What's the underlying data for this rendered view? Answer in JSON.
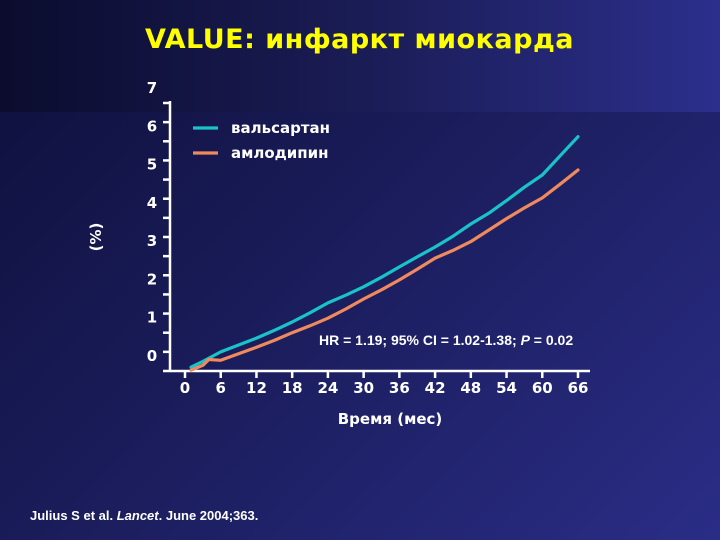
{
  "title": "VALUE: инфаркт миокарда",
  "citation": {
    "prefix": "Julius S et al. ",
    "journal": "Lancet",
    "suffix": ". June 2004;363."
  },
  "colors": {
    "title": "#ffff00",
    "valsartan": "#19c3c8",
    "amlodipine": "#f08a5d",
    "axis": "#ffffff"
  },
  "chart_data": {
    "type": "line",
    "title": "VALUE: инфаркт миокарда",
    "xlabel": "Время (мес)",
    "ylabel": "(%)",
    "xlim": [
      0,
      66
    ],
    "ylim": [
      0,
      7
    ],
    "x_ticks": [
      0,
      6,
      12,
      18,
      24,
      30,
      36,
      42,
      48,
      54,
      60,
      66
    ],
    "y_ticks": [
      0,
      1,
      2,
      3,
      4,
      5,
      6,
      7
    ],
    "legend_position": "top-left",
    "annotation": {
      "prefix": "HR = 1.19; 95% CI = 1.02-1.38; ",
      "p_label": "P",
      "suffix": " = 0.02"
    },
    "series": [
      {
        "name": "вальсартан",
        "color": "#19c3c8",
        "x": [
          1,
          3,
          6,
          9,
          12,
          15,
          18,
          21,
          24,
          27,
          30,
          33,
          36,
          39,
          42,
          45,
          48,
          51,
          54,
          57,
          60,
          63,
          66
        ],
        "y": [
          0.1,
          0.25,
          0.5,
          0.68,
          0.86,
          1.06,
          1.28,
          1.52,
          1.78,
          1.98,
          2.2,
          2.45,
          2.72,
          2.98,
          3.24,
          3.52,
          3.84,
          4.12,
          4.45,
          4.8,
          5.12,
          5.62,
          6.12
        ]
      },
      {
        "name": "амлодипин",
        "color": "#f08a5d",
        "x": [
          1,
          3,
          4,
          6,
          9,
          12,
          15,
          18,
          21,
          24,
          27,
          30,
          33,
          36,
          39,
          42,
          45,
          48,
          51,
          54,
          57,
          60,
          63,
          66
        ],
        "y": [
          0.02,
          0.15,
          0.3,
          0.28,
          0.45,
          0.62,
          0.8,
          1.0,
          1.18,
          1.38,
          1.62,
          1.88,
          2.12,
          2.38,
          2.66,
          2.95,
          3.15,
          3.38,
          3.68,
          3.98,
          4.26,
          4.52,
          4.88,
          5.25
        ]
      }
    ]
  }
}
